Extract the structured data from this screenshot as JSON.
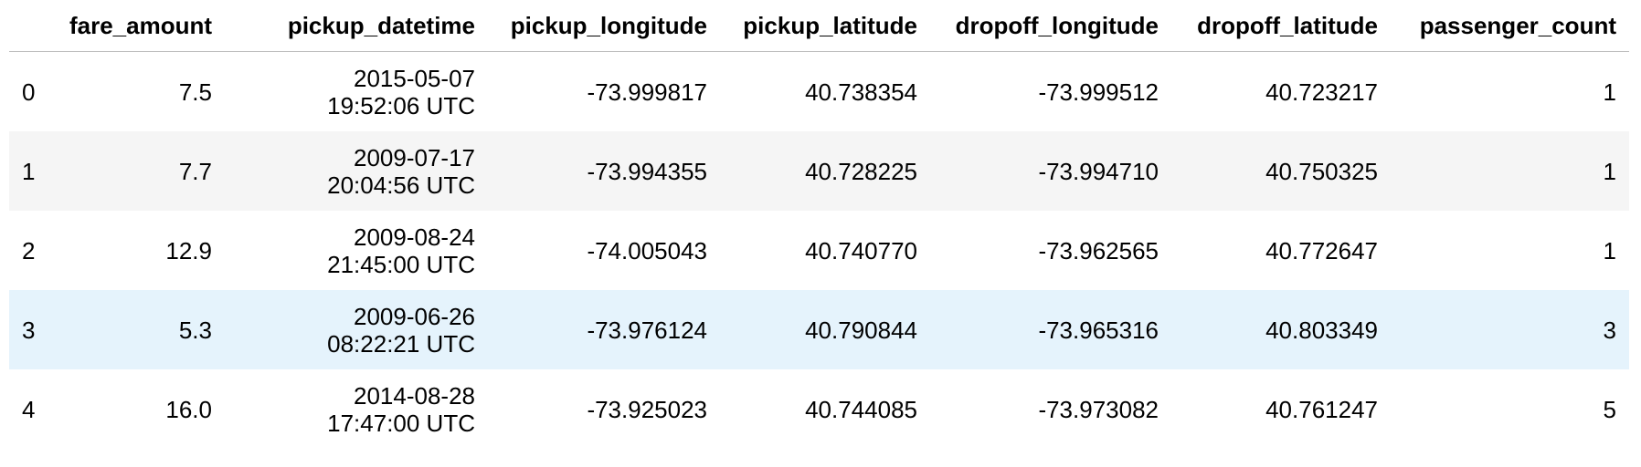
{
  "table": {
    "columns": [
      "",
      "fare_amount",
      "pickup_datetime",
      "pickup_longitude",
      "pickup_latitude",
      "dropoff_longitude",
      "dropoff_latitude",
      "passenger_count"
    ],
    "rows": [
      {
        "index": "0",
        "fare_amount": "7.5",
        "pickup_date": "2015-05-07",
        "pickup_time": "19:52:06 UTC",
        "pickup_longitude": "-73.999817",
        "pickup_latitude": "40.738354",
        "dropoff_longitude": "-73.999512",
        "dropoff_latitude": "40.723217",
        "passenger_count": "1"
      },
      {
        "index": "1",
        "fare_amount": "7.7",
        "pickup_date": "2009-07-17",
        "pickup_time": "20:04:56 UTC",
        "pickup_longitude": "-73.994355",
        "pickup_latitude": "40.728225",
        "dropoff_longitude": "-73.994710",
        "dropoff_latitude": "40.750325",
        "passenger_count": "1"
      },
      {
        "index": "2",
        "fare_amount": "12.9",
        "pickup_date": "2009-08-24",
        "pickup_time": "21:45:00 UTC",
        "pickup_longitude": "-74.005043",
        "pickup_latitude": "40.740770",
        "dropoff_longitude": "-73.962565",
        "dropoff_latitude": "40.772647",
        "passenger_count": "1"
      },
      {
        "index": "3",
        "fare_amount": "5.3",
        "pickup_date": "2009-06-26",
        "pickup_time": "08:22:21 UTC",
        "pickup_longitude": "-73.976124",
        "pickup_latitude": "40.790844",
        "dropoff_longitude": "-73.965316",
        "dropoff_latitude": "40.803349",
        "passenger_count": "3"
      },
      {
        "index": "4",
        "fare_amount": "16.0",
        "pickup_date": "2014-08-28",
        "pickup_time": "17:47:00 UTC",
        "pickup_longitude": "-73.925023",
        "pickup_latitude": "40.744085",
        "dropoff_longitude": "-73.973082",
        "dropoff_latitude": "40.761247",
        "passenger_count": "5"
      }
    ],
    "hover_row": 3,
    "colors": {
      "header_rule": "#bdbdbd",
      "stripe": "#f5f5f5",
      "hover": "#e5f3fc"
    }
  }
}
